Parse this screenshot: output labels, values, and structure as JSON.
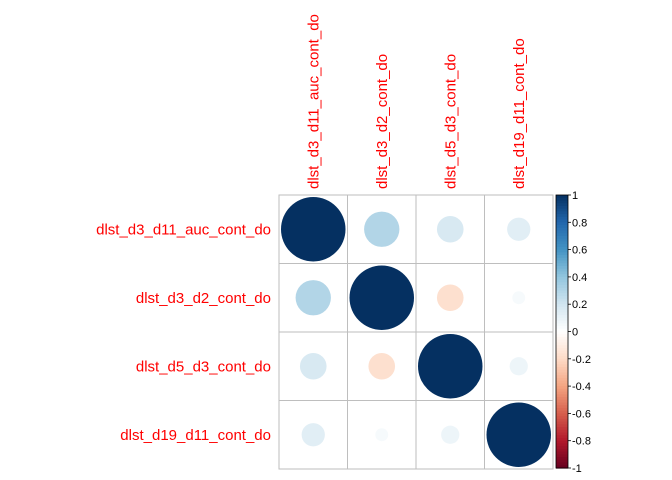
{
  "chart_data": {
    "type": "heatmap",
    "variables": [
      "dlst_d3_d11_auc_cont_do",
      "dlst_d3_d2_cont_do",
      "dlst_d5_d3_cont_do",
      "dlst_d19_d11_cont_do"
    ],
    "matrix": [
      [
        1.0,
        0.3,
        0.17,
        0.13
      ],
      [
        0.3,
        1.0,
        -0.17,
        0.04
      ],
      [
        0.17,
        -0.17,
        1.0,
        0.08
      ],
      [
        0.13,
        0.04,
        0.08,
        1.0
      ]
    ],
    "glyph": "circle",
    "label_color": "#ff0000",
    "grid_color": "#bebebe",
    "colorbar": {
      "range": [
        -1,
        1
      ],
      "ticks": [
        "1",
        "0.8",
        "0.6",
        "0.4",
        "0.2",
        "0",
        "-0.2",
        "-0.4",
        "-0.6",
        "-0.8",
        "-1"
      ],
      "tick_values": [
        1,
        0.8,
        0.6,
        0.4,
        0.2,
        0,
        -0.2,
        -0.4,
        -0.6,
        -0.8,
        -1
      ],
      "color_stops": [
        [
          -1,
          "#67001f"
        ],
        [
          -0.8,
          "#b2182b"
        ],
        [
          -0.6,
          "#d6604d"
        ],
        [
          -0.4,
          "#f4a582"
        ],
        [
          -0.2,
          "#fddbc7"
        ],
        [
          0,
          "#ffffff"
        ],
        [
          0.2,
          "#d1e5f0"
        ],
        [
          0.4,
          "#92c5de"
        ],
        [
          0.6,
          "#4393c3"
        ],
        [
          0.8,
          "#2166ac"
        ],
        [
          1,
          "#053061"
        ]
      ]
    }
  }
}
